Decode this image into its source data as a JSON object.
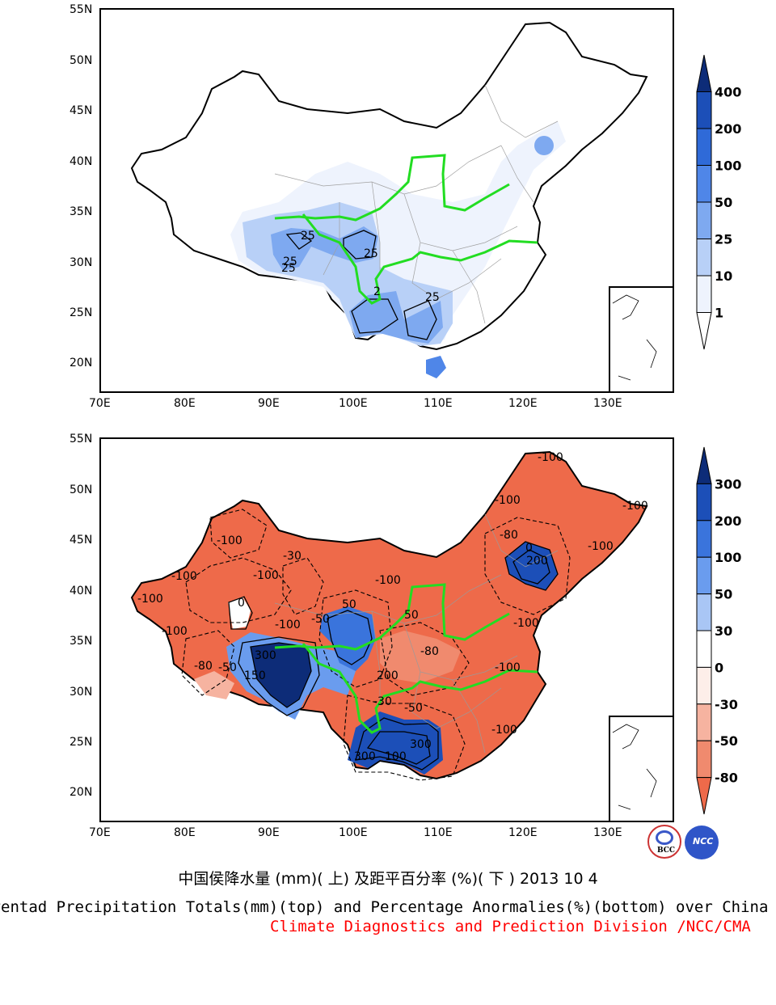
{
  "maps": [
    {
      "id": "top",
      "y_ticks": [
        "55N",
        "50N",
        "45N",
        "40N",
        "35N",
        "30N",
        "25N",
        "20N"
      ],
      "x_ticks": [
        "70E",
        "80E",
        "90E",
        "100E",
        "110E",
        "120E",
        "130E"
      ],
      "contour_labels": [
        "25",
        "25",
        "25",
        "25",
        "25",
        "2"
      ],
      "colorbar": {
        "levels": [
          "400",
          "200",
          "100",
          "50",
          "25",
          "10",
          "1"
        ],
        "colors": [
          "#0d2c78",
          "#1c4fb8",
          "#2f6ad8",
          "#4f86e8",
          "#7ea9f0",
          "#b8d0f7",
          "#eef3fd",
          "#ffffff"
        ]
      }
    },
    {
      "id": "bottom",
      "y_ticks": [
        "55N",
        "50N",
        "45N",
        "40N",
        "35N",
        "30N",
        "25N",
        "20N"
      ],
      "x_ticks": [
        "70E",
        "80E",
        "90E",
        "100E",
        "110E",
        "120E",
        "130E"
      ],
      "contour_labels": [
        "-100",
        "-100",
        "-100",
        "-100",
        "-100",
        "-100",
        "-100",
        "-100",
        "-100",
        "-100",
        "-100",
        "-100",
        "-100",
        "-80",
        "-80",
        "-80",
        "-50",
        "-50",
        "-50",
        "-30",
        "-30",
        "0",
        "0",
        "50",
        "50",
        "100",
        "150",
        "200",
        "200",
        "300",
        "300",
        "300",
        "-100"
      ],
      "colorbar": {
        "levels": [
          "300",
          "200",
          "100",
          "50",
          "30",
          "0",
          "-30",
          "-50",
          "-80"
        ],
        "colors": [
          "#0d2c78",
          "#1c4fb8",
          "#3a74dc",
          "#6a9cee",
          "#a9c6f5",
          "#ffffff",
          "#fdeee9",
          "#f6b3a0",
          "#f08a6e",
          "#ee6a4a"
        ]
      }
    }
  ],
  "caption": {
    "cn": "中国侯降水量 (mm)( 上) 及距平百分率 (%)( 下 ) 2013 10 4",
    "en": "Pentad Precipitation Totals(mm)(top) and Percentage Anormalies(%)(bottom) over China",
    "division": "Climate Diagnostics and Prediction Division /NCC/CMA"
  },
  "logos": [
    "BCC",
    "NCC"
  ]
}
